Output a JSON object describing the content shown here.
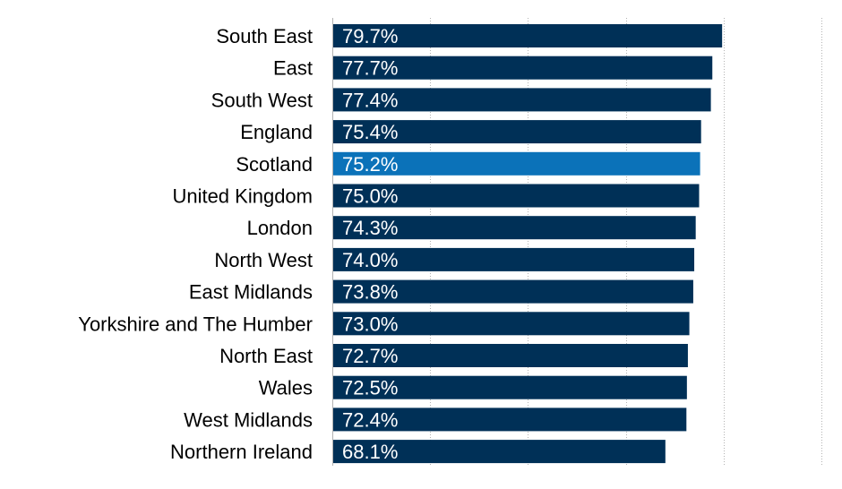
{
  "chart_data": {
    "type": "bar",
    "orientation": "horizontal",
    "categories": [
      "South East",
      "East",
      "South West",
      "England",
      "Scotland",
      "United Kingdom",
      "London",
      "North West ",
      "East Midlands",
      "Yorkshire and The Humber",
      "North East",
      "Wales",
      "West Midlands",
      "Northern Ireland "
    ],
    "values": [
      79.7,
      77.7,
      77.4,
      75.4,
      75.2,
      75.0,
      74.3,
      74.0,
      73.8,
      73.0,
      72.7,
      72.5,
      72.4,
      68.1
    ],
    "value_labels": [
      "79.7%",
      "77.7%",
      "77.4%",
      "75.4%",
      "75.2%",
      "75.0%",
      "74.3%",
      "74.0%",
      "73.8%",
      "73.0%",
      "72.7%",
      "72.5%",
      "72.4%",
      "68.1%"
    ],
    "highlight_index": 4,
    "xlim": [
      0,
      100
    ],
    "grid": true,
    "title": "",
    "xlabel": "",
    "ylabel": "",
    "colors": {
      "bar": "#003057",
      "highlight": "#0b72b9"
    }
  }
}
